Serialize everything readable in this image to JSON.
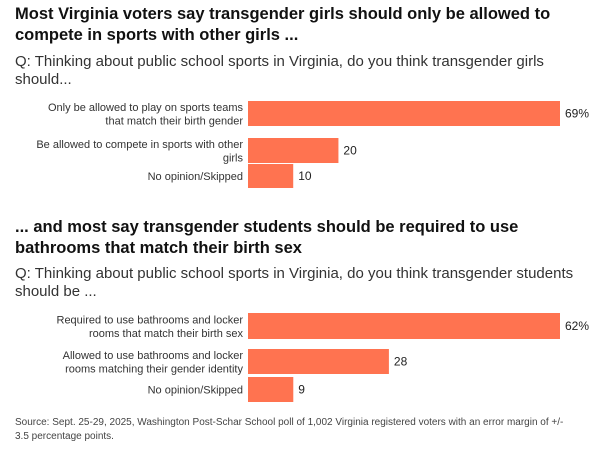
{
  "panels": [
    {
      "title": "Most Virginia voters say transgender girls should only be allowed to compete in sports with other girls ...",
      "question": "Q: Thinking about public school sports in Virginia, do you think transgender girls should...",
      "chart_data": {
        "type": "bar",
        "orientation": "horizontal",
        "categories": [
          [
            "Only be allowed to play on sports teams",
            "that match their birth gender"
          ],
          [
            "Be allowed to compete in sports with other",
            "girls"
          ],
          [
            "No opinion/Skipped"
          ]
        ],
        "values": [
          69,
          20,
          10
        ],
        "value_labels": [
          "69%",
          "20",
          "10"
        ],
        "xlim": [
          0,
          69
        ]
      }
    },
    {
      "title": "... and most say transgender students should be required to use bathrooms that match their birth sex",
      "question": "Q: Thinking about public school sports in Virginia, do you think transgender students should be ...",
      "chart_data": {
        "type": "bar",
        "orientation": "horizontal",
        "categories": [
          [
            "Required to use bathrooms and locker",
            "rooms that match their birth sex"
          ],
          [
            "Allowed to use bathrooms and locker",
            "rooms matching their gender identity"
          ],
          [
            "No opinion/Skipped"
          ]
        ],
        "values": [
          62,
          28,
          9
        ],
        "value_labels": [
          "62%",
          "28",
          "9"
        ],
        "xlim": [
          0,
          62
        ]
      }
    }
  ],
  "bar_color": "#ff7350",
  "source": "Source: Sept. 25-29, 2025, Washington Post-Schar School poll of 1,002 Virginia registered voters with an error margin of +/- 3.5 percentage points."
}
